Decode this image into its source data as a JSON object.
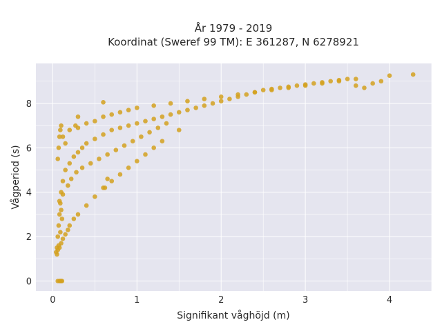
{
  "chart_data": {
    "type": "scatter",
    "title_line1": "År 1979 - 2019",
    "title_line2": "Koordinat (Sweref 99 TM): E 361287, N 6278921",
    "xlabel": "Signifikant våghöjd (m)",
    "ylabel": "Vågperiod (s)",
    "xlim": [
      -0.2,
      4.5
    ],
    "ylim": [
      -0.45,
      9.8
    ],
    "x_ticks": [
      0,
      1,
      2,
      3,
      4
    ],
    "x_tick_labels": [
      "0",
      "1",
      "2",
      "3",
      "4"
    ],
    "y_ticks": [
      0,
      2,
      4,
      6,
      8
    ],
    "y_tick_labels": [
      "0",
      "2",
      "4",
      "6",
      "8"
    ],
    "grid": true,
    "legend": "none",
    "colors": {
      "marker": "#d4a11e",
      "plot_background": "#e5e5ef",
      "grid": "#ffffff"
    },
    "series": [
      {
        "x": [
          0.05,
          0.06,
          0.07,
          0.08,
          0.09,
          0.1,
          0.12,
          0.15,
          0.2,
          0.25,
          0.3,
          0.35,
          0.4,
          0.5,
          0.6,
          0.7,
          0.8,
          0.9,
          1.0,
          1.1,
          1.2,
          1.3,
          1.4,
          1.5,
          1.6,
          1.7,
          1.8,
          1.9,
          2.0,
          2.1,
          2.2,
          2.3,
          2.4,
          2.5,
          2.6,
          2.7,
          2.8,
          2.9,
          3.0,
          3.1,
          3.2,
          3.3,
          3.4,
          3.5,
          3.6,
          3.7,
          3.8,
          3.9,
          4.0,
          4.28,
          0.04,
          0.06,
          0.08,
          0.1,
          0.12,
          0.15,
          0.18,
          0.2,
          0.25,
          0.3,
          0.4,
          0.5,
          0.6,
          0.7,
          0.8,
          0.9,
          1.0,
          1.1,
          1.2,
          1.3,
          1.5,
          0.06,
          0.07,
          0.08,
          0.09,
          0.1,
          0.12,
          0.15,
          0.2,
          0.3,
          0.4,
          0.5,
          0.6,
          0.7,
          0.8,
          0.9,
          1.0,
          1.2,
          1.4,
          1.6,
          1.8,
          2.0,
          2.2,
          2.4,
          2.6,
          2.8,
          3.0,
          3.2,
          3.4,
          3.6,
          0.05,
          0.07,
          0.09,
          0.11,
          0.1,
          0.08,
          0.12,
          0.18,
          0.22,
          0.28,
          0.35,
          0.45,
          0.55,
          0.65,
          0.75,
          0.85,
          0.95,
          1.05,
          1.15,
          1.25,
          1.35,
          0.06,
          0.08,
          0.1,
          0.09,
          0.11,
          0.6,
          0.62,
          0.65,
          0.3,
          0.27
        ],
        "y": [
          1.5,
          2.0,
          2.5,
          3.0,
          3.5,
          4.0,
          4.5,
          5.0,
          5.3,
          5.6,
          5.8,
          6.0,
          6.2,
          6.4,
          6.6,
          6.8,
          6.9,
          7.0,
          7.1,
          7.2,
          7.3,
          7.4,
          7.5,
          7.6,
          7.7,
          7.8,
          7.9,
          8.0,
          8.1,
          8.2,
          8.3,
          8.4,
          8.5,
          8.6,
          8.65,
          8.7,
          8.75,
          8.8,
          8.85,
          8.9,
          8.95,
          9.0,
          9.05,
          9.1,
          8.8,
          8.7,
          8.9,
          9.0,
          9.25,
          9.3,
          1.3,
          1.4,
          1.5,
          1.7,
          1.9,
          2.1,
          2.3,
          2.5,
          2.8,
          3.0,
          3.4,
          3.8,
          4.2,
          4.5,
          4.8,
          5.1,
          5.4,
          5.7,
          6.0,
          6.3,
          6.8,
          5.5,
          6.0,
          6.5,
          6.8,
          7.0,
          6.5,
          6.2,
          6.8,
          6.9,
          7.1,
          7.2,
          7.4,
          7.5,
          7.6,
          7.7,
          7.8,
          7.9,
          8.0,
          8.1,
          8.2,
          8.3,
          8.4,
          8.5,
          8.6,
          8.7,
          8.8,
          8.9,
          9.0,
          9.1,
          1.2,
          1.6,
          2.2,
          2.8,
          3.2,
          3.6,
          3.9,
          4.3,
          4.6,
          4.9,
          5.1,
          5.3,
          5.5,
          5.7,
          5.9,
          6.1,
          6.3,
          6.5,
          6.7,
          6.9,
          7.1,
          0.0,
          0.0,
          0.0,
          0.0,
          0.0,
          8.05,
          4.2,
          4.6,
          7.4,
          7.0
        ]
      }
    ]
  }
}
